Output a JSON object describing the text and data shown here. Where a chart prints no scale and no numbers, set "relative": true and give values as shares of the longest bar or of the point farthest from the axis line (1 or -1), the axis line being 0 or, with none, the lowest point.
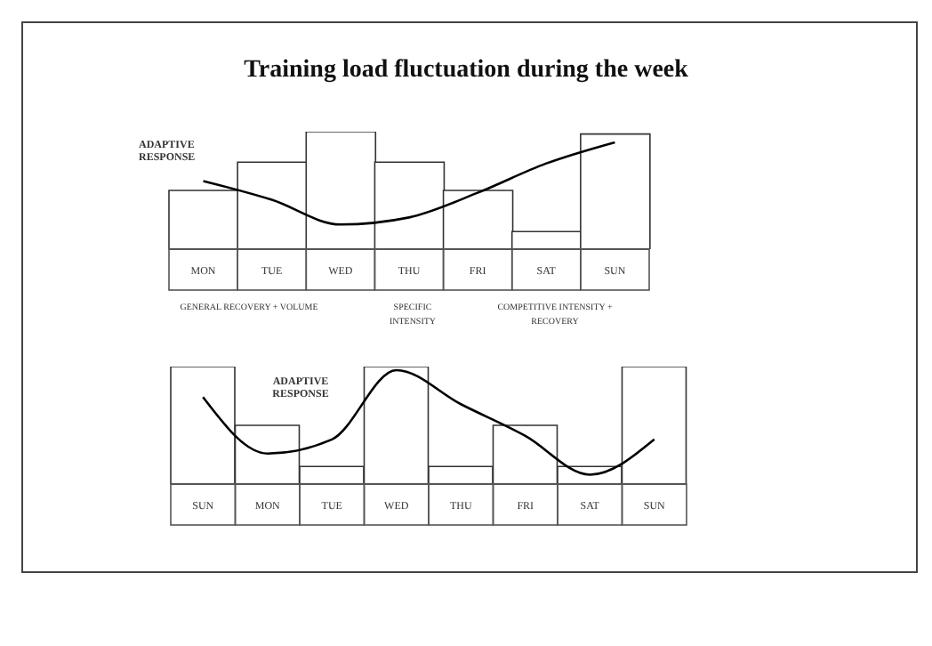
{
  "chart_data": [
    {
      "type": "bar",
      "title": "Training load fluctuation during the week",
      "relative": true,
      "categories": [
        "MON",
        "TUE",
        "WED",
        "THU",
        "FRI",
        "SAT",
        "SUN"
      ],
      "series": [
        {
          "color": "#ffffff",
          "values": [
            0.5,
            0.74,
            1,
            0.74,
            0.5,
            0.15,
            0.98
          ]
        },
        {
          "type": "line",
          "name": "ADAPTIVE RESPONSE",
          "color": "#000000",
          "values": [
            0.58,
            0.42,
            0.21,
            0.27,
            0.48,
            0.73,
            0.91
          ]
        }
      ],
      "annotations": [
        "GENERAL RECOVERY + VOLUME",
        "SPECIFIC INTENSITY",
        "COMPETITIVE INTENSITY + RECOVERY"
      ]
    },
    {
      "type": "bar",
      "relative": true,
      "categories": [
        "SUN",
        "MON",
        "TUE",
        "WED",
        "THU",
        "FRI",
        "SAT",
        "SUN"
      ],
      "series": [
        {
          "color": "#ffffff",
          "values": [
            1,
            0.5,
            0.15,
            1,
            0.15,
            0.5,
            0.15,
            1
          ]
        },
        {
          "type": "line",
          "name": "ADAPTIVE RESPONSE",
          "color": "#000000",
          "values": [
            0.74,
            0.26,
            0.38,
            0.97,
            0.68,
            0.41,
            0.08,
            0.38
          ]
        }
      ]
    }
  ]
}
